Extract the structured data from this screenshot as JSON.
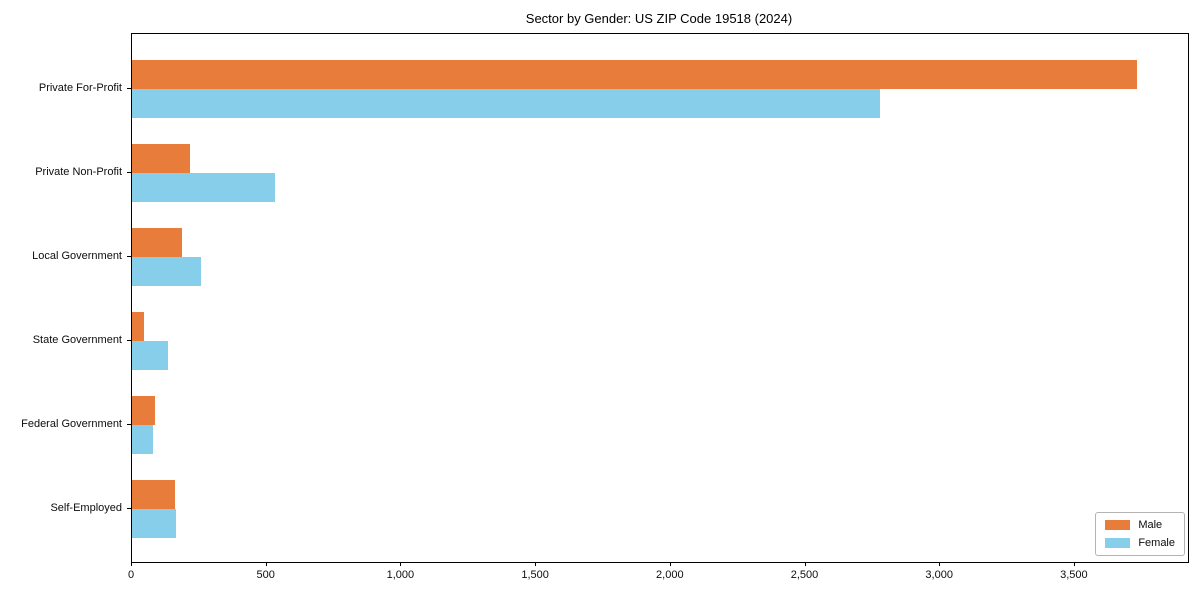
{
  "title": "Sector by Gender: US ZIP Code 19518 (2024)",
  "chart_data": {
    "type": "bar",
    "orientation": "horizontal",
    "title": "Sector by Gender: US ZIP Code 19518 (2024)",
    "categories": [
      "Private For-Profit",
      "Private Non-Profit",
      "Local Government",
      "State Government",
      "Federal Government",
      "Self-Employed"
    ],
    "series": [
      {
        "name": "Male",
        "color": "#e87d3b",
        "values": [
          3730,
          215,
          187,
          43,
          87,
          159
        ]
      },
      {
        "name": "Female",
        "color": "#87ceeb",
        "values": [
          2775,
          532,
          256,
          133,
          78,
          165
        ]
      }
    ],
    "xlabel": "",
    "ylabel": "",
    "xlim": [
      0,
      3920
    ],
    "xticks": [
      0,
      500,
      1000,
      1500,
      2000,
      2500,
      3000,
      3500
    ],
    "xtick_labels": [
      "0",
      "500",
      "1,000",
      "1,500",
      "2,000",
      "2,500",
      "3,000",
      "3,500"
    ],
    "grid": false,
    "legend": {
      "position": "lower right"
    }
  }
}
